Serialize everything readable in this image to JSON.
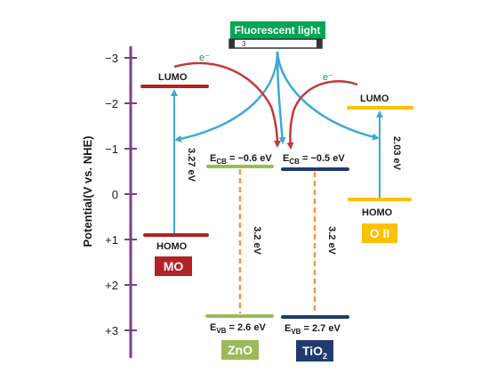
{
  "light_source": {
    "label": "Fluorescent light",
    "bulb_mark": "3"
  },
  "axis": {
    "label": "Potential(V vs. NHE)",
    "ticks": [
      "−3",
      "−2",
      "−1",
      "0",
      "+1",
      "+2",
      "+3"
    ]
  },
  "electron_label": "e⁻",
  "mo": {
    "name": "MO",
    "lumo": "LUMO",
    "homo": "HOMO",
    "gap": "3.27 eV"
  },
  "zno": {
    "name": "ZnO",
    "ecb_pre": "E",
    "ecb_sub": "CB",
    "ecb_val": " = −0.6 eV",
    "evb_pre": "E",
    "evb_sub": "VB",
    "evb_val": " = 2.6 eV",
    "gap": "3.2 eV"
  },
  "tio2": {
    "name_main": "TiO",
    "name_sub": "2",
    "ecb_pre": "E",
    "ecb_sub": "CB",
    "ecb_val": " = −0.5 eV",
    "evb_pre": "E",
    "evb_sub": "VB",
    "evb_val": " = 2.7 eV",
    "gap": "3.2 eV"
  },
  "oii": {
    "name": "O II",
    "lumo": "LUMO",
    "homo": "HOMO",
    "gap": "2.03 eV"
  },
  "colors": {
    "axis": "#7b3f8c",
    "mo": "#b22226",
    "zno": "#9bbb59",
    "tio2": "#1f3b6e",
    "oii": "#ffc000",
    "light": "#00a651",
    "cyan_arrow": "#3da9d6",
    "red_arrow": "#c0393b",
    "dashed": "#f79646",
    "electron": "#00a651"
  }
}
